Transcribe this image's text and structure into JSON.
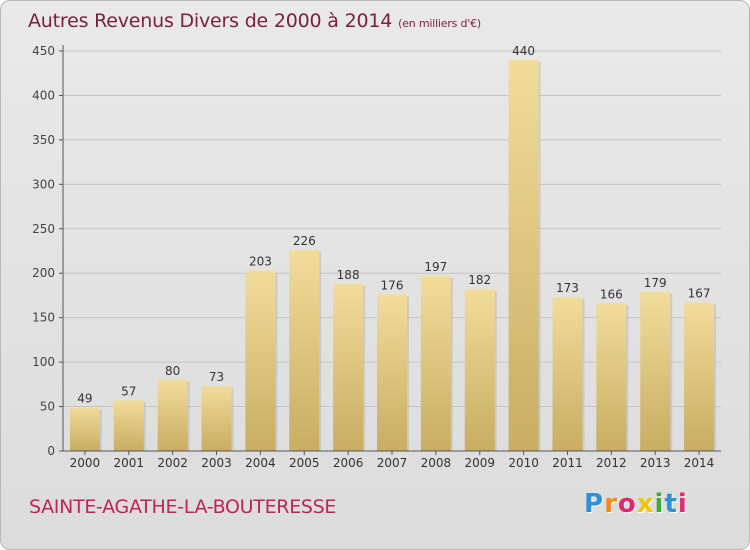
{
  "title": "Autres Revenus Divers de 2000 à 2014",
  "title_unit": "(en milliers d'€)",
  "place": "SAINTE-AGATHE-LA-BOUTERESSE",
  "logo": {
    "text": "Proxiti",
    "letters": [
      {
        "ch": "P",
        "color": "#2f8fd8"
      },
      {
        "ch": "r",
        "color": "#f08a1c"
      },
      {
        "ch": "o",
        "color": "#e02a6e"
      },
      {
        "ch": "x",
        "color": "#f2c500"
      },
      {
        "ch": "i",
        "color": "#3faa35"
      },
      {
        "ch": "t",
        "color": "#2f8fd8"
      },
      {
        "ch": "i",
        "color": "#e02a6e"
      }
    ]
  },
  "colors": {
    "bar_top": "#f2dc9a",
    "bar_bottom": "#c8ad62",
    "title": "#7a1f3d",
    "place": "#c0225a"
  },
  "chart_data": {
    "type": "bar",
    "title": "Autres Revenus Divers de 2000 à 2014",
    "subtitle": "(en milliers d'€)",
    "xlabel": "",
    "ylabel": "",
    "categories": [
      "2000",
      "2001",
      "2002",
      "2003",
      "2004",
      "2005",
      "2006",
      "2007",
      "2008",
      "2009",
      "2010",
      "2011",
      "2012",
      "2013",
      "2014"
    ],
    "values": [
      49,
      57,
      80,
      73,
      203,
      226,
      188,
      176,
      197,
      182,
      440,
      173,
      166,
      179,
      167
    ],
    "ylim": [
      0,
      450
    ],
    "yticks": [
      0,
      50,
      100,
      150,
      200,
      250,
      300,
      350,
      400,
      450
    ],
    "grid": true,
    "data_labels": true
  }
}
